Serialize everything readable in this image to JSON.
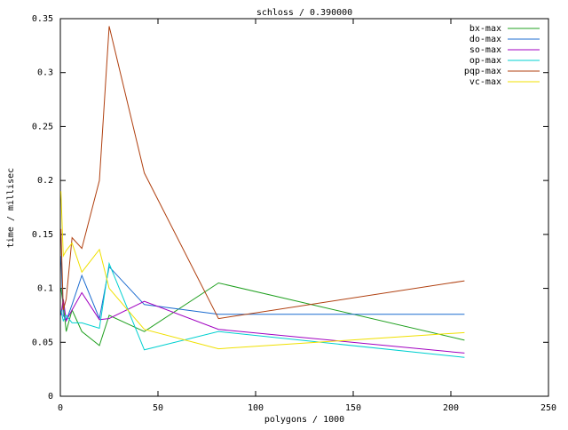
{
  "chart_data": {
    "type": "line",
    "title": "schloss / 0.390000",
    "x_label": "polygons / 1000",
    "y_label": "time / millisec",
    "x": [
      0.3,
      1.5,
      3,
      6,
      11,
      20,
      25,
      43,
      81,
      207
    ],
    "series": [
      {
        "name": "bx-max",
        "color": "#20a020",
        "values": [
          0.1,
          0.085,
          0.06,
          0.08,
          0.06,
          0.047,
          0.075,
          0.06,
          0.105,
          0.052
        ]
      },
      {
        "name": "do-max",
        "color": "#1c6cd0",
        "values": [
          0.13,
          0.075,
          0.07,
          0.085,
          0.112,
          0.072,
          0.12,
          0.085,
          0.076,
          0.076
        ]
      },
      {
        "name": "so-max",
        "color": "#a000c0",
        "values": [
          0.075,
          0.09,
          0.07,
          0.08,
          0.096,
          0.071,
          0.072,
          0.088,
          0.062,
          0.04
        ]
      },
      {
        "name": "op-max",
        "color": "#00d0d0",
        "values": [
          0.08,
          0.07,
          0.075,
          0.068,
          0.068,
          0.063,
          0.123,
          0.043,
          0.06,
          0.036
        ]
      },
      {
        "name": "pqp-max",
        "color": "#b04010",
        "values": [
          0.155,
          0.08,
          0.09,
          0.147,
          0.137,
          0.2,
          0.343,
          0.207,
          0.072,
          0.107
        ]
      },
      {
        "name": "vc-max",
        "color": "#f0e000",
        "values": [
          0.19,
          0.13,
          0.135,
          0.142,
          0.115,
          0.136,
          0.1,
          0.062,
          0.044,
          0.059
        ]
      }
    ],
    "xlim": [
      0,
      250
    ],
    "xticks": [
      0,
      50,
      100,
      150,
      200,
      250
    ],
    "ylim": [
      0,
      0.35
    ],
    "yticks": [
      0,
      0.05,
      0.1,
      0.15,
      0.2,
      0.25,
      0.3,
      0.35
    ],
    "grid": false,
    "legend": "top-right"
  }
}
